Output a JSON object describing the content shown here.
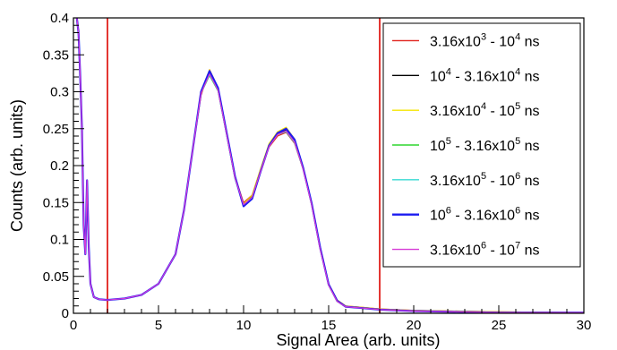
{
  "chart_data": {
    "type": "line",
    "xlabel": "Signal Area (arb. units)",
    "ylabel": "Counts (arb. units)",
    "xlim": [
      0,
      30
    ],
    "ylim": [
      0,
      0.4
    ],
    "x_ticks": [
      0,
      5,
      10,
      15,
      20,
      25,
      30
    ],
    "x_tick_labels": [
      "0",
      "5",
      "10",
      "15",
      "20",
      "25",
      "30"
    ],
    "y_ticks": [
      0,
      0.05,
      0.1,
      0.15,
      0.2,
      0.25,
      0.3,
      0.35,
      0.4
    ],
    "y_tick_labels": [
      "0",
      "0.05",
      "0.1",
      "0.15",
      "0.2",
      "0.25",
      "0.3",
      "0.35",
      "0.4"
    ],
    "grid": false,
    "legend_position": "top-right",
    "vertical_lines": [
      {
        "x": 2,
        "color": "#e0201b"
      },
      {
        "x": 18,
        "color": "#e0201b"
      }
    ],
    "x": [
      0.2,
      0.3,
      0.4,
      0.5,
      0.6,
      0.7,
      0.8,
      0.9,
      1.0,
      1.2,
      1.5,
      2.0,
      3.0,
      4.0,
      5.0,
      6.0,
      6.5,
      7.0,
      7.5,
      8.0,
      8.5,
      9.0,
      9.5,
      10.0,
      10.5,
      11.0,
      11.5,
      12.0,
      12.5,
      13.0,
      13.5,
      14.0,
      14.5,
      15.0,
      15.5,
      16.0,
      17.0,
      18.0,
      20.0,
      25.0,
      30.0
    ],
    "series": [
      {
        "name": "3.16x10^3 - 10^4 ns",
        "color": "#e0201b",
        "stroke_width": 1.2,
        "values": [
          0.4,
          0.38,
          0.32,
          0.25,
          0.12,
          0.08,
          0.18,
          0.09,
          0.04,
          0.022,
          0.019,
          0.018,
          0.02,
          0.025,
          0.04,
          0.08,
          0.14,
          0.22,
          0.295,
          0.33,
          0.305,
          0.245,
          0.185,
          0.15,
          0.16,
          0.195,
          0.225,
          0.24,
          0.245,
          0.23,
          0.195,
          0.15,
          0.09,
          0.04,
          0.018,
          0.01,
          0.008,
          0.006,
          0.004,
          0.002,
          0.001
        ]
      },
      {
        "name": "10^4 - 3.16x10^4 ns",
        "color": "#000000",
        "stroke_width": 1.2,
        "values": [
          0.4,
          0.38,
          0.32,
          0.25,
          0.12,
          0.08,
          0.18,
          0.09,
          0.04,
          0.022,
          0.019,
          0.018,
          0.02,
          0.025,
          0.04,
          0.08,
          0.14,
          0.22,
          0.3,
          0.325,
          0.303,
          0.243,
          0.183,
          0.148,
          0.158,
          0.193,
          0.228,
          0.243,
          0.248,
          0.233,
          0.196,
          0.148,
          0.088,
          0.038,
          0.016,
          0.009,
          0.007,
          0.005,
          0.003,
          0.001,
          0.001
        ]
      },
      {
        "name": "3.16x10^4 - 10^5 ns",
        "color": "#f5e400",
        "stroke_width": 1.2,
        "values": [
          0.4,
          0.38,
          0.32,
          0.25,
          0.12,
          0.08,
          0.18,
          0.09,
          0.04,
          0.022,
          0.019,
          0.018,
          0.02,
          0.025,
          0.04,
          0.08,
          0.14,
          0.22,
          0.3,
          0.33,
          0.305,
          0.245,
          0.185,
          0.148,
          0.16,
          0.196,
          0.23,
          0.246,
          0.252,
          0.236,
          0.198,
          0.15,
          0.09,
          0.04,
          0.018,
          0.01,
          0.008,
          0.006,
          0.004,
          0.002,
          0.001
        ]
      },
      {
        "name": "10^5 - 3.16x10^5 ns",
        "color": "#2fd62f",
        "stroke_width": 1.2,
        "values": [
          0.4,
          0.38,
          0.32,
          0.25,
          0.12,
          0.08,
          0.18,
          0.09,
          0.04,
          0.022,
          0.019,
          0.018,
          0.02,
          0.025,
          0.04,
          0.08,
          0.14,
          0.22,
          0.298,
          0.322,
          0.301,
          0.242,
          0.182,
          0.147,
          0.157,
          0.192,
          0.226,
          0.242,
          0.246,
          0.231,
          0.195,
          0.147,
          0.087,
          0.038,
          0.016,
          0.009,
          0.007,
          0.005,
          0.003,
          0.001,
          0.001
        ]
      },
      {
        "name": "3.16x10^5 - 10^6 ns",
        "color": "#37d9d3",
        "stroke_width": 1.2,
        "values": [
          0.4,
          0.38,
          0.32,
          0.25,
          0.12,
          0.08,
          0.18,
          0.09,
          0.04,
          0.022,
          0.019,
          0.018,
          0.02,
          0.025,
          0.04,
          0.08,
          0.14,
          0.22,
          0.298,
          0.323,
          0.302,
          0.242,
          0.182,
          0.147,
          0.157,
          0.192,
          0.226,
          0.242,
          0.246,
          0.231,
          0.195,
          0.147,
          0.087,
          0.038,
          0.016,
          0.009,
          0.007,
          0.005,
          0.003,
          0.001,
          0.001
        ]
      },
      {
        "name": "10^6 - 3.16x10^6 ns",
        "color": "#1c1cf0",
        "stroke_width": 2.2,
        "values": [
          0.4,
          0.38,
          0.32,
          0.25,
          0.12,
          0.08,
          0.18,
          0.09,
          0.04,
          0.022,
          0.019,
          0.018,
          0.02,
          0.025,
          0.04,
          0.08,
          0.14,
          0.22,
          0.3,
          0.328,
          0.305,
          0.245,
          0.185,
          0.145,
          0.155,
          0.192,
          0.227,
          0.244,
          0.25,
          0.235,
          0.197,
          0.149,
          0.089,
          0.039,
          0.017,
          0.009,
          0.007,
          0.005,
          0.003,
          0.001,
          0.001
        ]
      },
      {
        "name": "3.16x10^6 - 10^7 ns",
        "color": "#d63ad6",
        "stroke_width": 1.2,
        "values": [
          0.4,
          0.38,
          0.32,
          0.25,
          0.12,
          0.08,
          0.18,
          0.09,
          0.04,
          0.022,
          0.019,
          0.018,
          0.02,
          0.025,
          0.04,
          0.08,
          0.14,
          0.22,
          0.298,
          0.324,
          0.302,
          0.243,
          0.183,
          0.147,
          0.157,
          0.192,
          0.226,
          0.242,
          0.247,
          0.232,
          0.195,
          0.147,
          0.087,
          0.038,
          0.016,
          0.009,
          0.007,
          0.005,
          0.003,
          0.001,
          0.001
        ]
      }
    ],
    "legend": [
      {
        "base1": "3.16x10",
        "sup1": "3",
        "mid": " - 10",
        "sup2": "4",
        "tail": " ns"
      },
      {
        "base1": "10",
        "sup1": "4",
        "mid": " - 3.16x10",
        "sup2": "4",
        "tail": " ns"
      },
      {
        "base1": "3.16x10",
        "sup1": "4",
        "mid": " - 10",
        "sup2": "5",
        "tail": " ns"
      },
      {
        "base1": "10",
        "sup1": "5",
        "mid": " - 3.16x10",
        "sup2": "5",
        "tail": " ns"
      },
      {
        "base1": "3.16x10",
        "sup1": "5",
        "mid": " - 10",
        "sup2": "6",
        "tail": " ns"
      },
      {
        "base1": "10",
        "sup1": "6",
        "mid": " - 3.16x10",
        "sup2": "6",
        "tail": " ns"
      },
      {
        "base1": "3.16x10",
        "sup1": "6",
        "mid": " - 10",
        "sup2": "7",
        "tail": " ns"
      }
    ]
  }
}
